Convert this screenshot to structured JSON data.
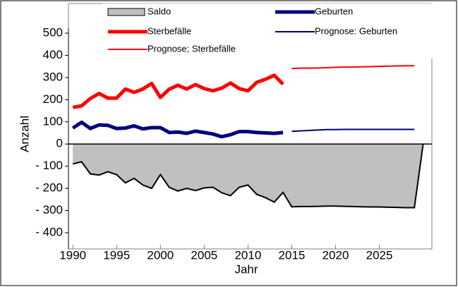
{
  "chart_data": {
    "type": "area-line",
    "x_label": "Jahr",
    "y_label": "Anzahl",
    "x": [
      1990,
      1991,
      1992,
      1993,
      1994,
      1995,
      1996,
      1997,
      1998,
      1999,
      2000,
      2001,
      2002,
      2003,
      2004,
      2005,
      2006,
      2007,
      2008,
      2009,
      2010,
      2011,
      2012,
      2013,
      2014,
      2015,
      2016,
      2017,
      2018,
      2019,
      2020,
      2021,
      2022,
      2023,
      2024,
      2025,
      2026,
      2027,
      2028,
      2029,
      2030
    ],
    "xlim": [
      1989.5,
      2031
    ],
    "xticks": [
      1990,
      1995,
      2000,
      2005,
      2010,
      2015,
      2020,
      2025
    ],
    "ylim": [
      -400,
      500
    ],
    "yticks": [
      {
        "value": -400,
        "label": "- 400"
      },
      {
        "value": -300,
        "label": "- 300"
      },
      {
        "value": -200,
        "label": "- 200"
      },
      {
        "value": -100,
        "label": "- 100"
      },
      0,
      100,
      200,
      300,
      400,
      500
    ],
    "series": [
      {
        "name": "Saldo",
        "style": "area",
        "color": "#c0c0c0",
        "values": [
          -90,
          -80,
          -135,
          -140,
          -125,
          -138,
          -175,
          -155,
          -185,
          -200,
          -138,
          -195,
          -212,
          -200,
          -210,
          -198,
          -195,
          -220,
          -233,
          -195,
          -185,
          -227,
          -242,
          -262,
          -218,
          -283,
          -282,
          -282,
          -281,
          -280,
          -280,
          -281,
          -282,
          -283,
          -284,
          -284,
          -285,
          -286,
          -287,
          -287,
          0
        ]
      },
      {
        "name": "Geburten",
        "style": "line",
        "color": "#000080",
        "width": 5,
        "values": [
          72,
          98,
          70,
          86,
          84,
          70,
          72,
          82,
          68,
          74,
          74,
          52,
          54,
          48,
          58,
          52,
          45,
          33,
          42,
          56,
          56,
          52,
          50,
          48,
          52,
          null,
          null,
          null,
          null,
          null,
          null,
          null,
          null,
          null,
          null,
          null,
          null,
          null,
          null,
          null,
          null
        ]
      },
      {
        "name": "Sterbefälle",
        "style": "line",
        "color": "#ff0000",
        "width": 5,
        "values": [
          165,
          172,
          205,
          228,
          207,
          207,
          248,
          233,
          248,
          273,
          210,
          247,
          265,
          248,
          268,
          250,
          240,
          252,
          275,
          250,
          240,
          278,
          292,
          310,
          270,
          null,
          null,
          null,
          null,
          null,
          null,
          null,
          null,
          null,
          null,
          null,
          null,
          null,
          null,
          null,
          null
        ]
      },
      {
        "name": "Prognose: Geburten",
        "style": "line",
        "color": "#000080",
        "width": 2,
        "values": [
          null,
          null,
          null,
          null,
          null,
          null,
          null,
          null,
          null,
          null,
          null,
          null,
          null,
          null,
          null,
          null,
          null,
          null,
          null,
          null,
          null,
          null,
          null,
          null,
          null,
          57,
          59,
          61,
          63,
          65,
          65,
          66,
          66,
          66,
          66,
          66,
          66,
          66,
          66,
          66,
          null
        ]
      },
      {
        "name": "Prognose; Sterbefälle",
        "style": "line",
        "color": "#ff0000",
        "width": 2,
        "values": [
          null,
          null,
          null,
          null,
          null,
          null,
          null,
          null,
          null,
          null,
          null,
          null,
          null,
          null,
          null,
          null,
          null,
          null,
          null,
          null,
          null,
          null,
          null,
          null,
          null,
          340,
          342,
          342,
          343,
          344,
          346,
          347,
          347,
          348,
          349,
          350,
          351,
          352,
          353,
          353,
          null
        ]
      }
    ]
  }
}
